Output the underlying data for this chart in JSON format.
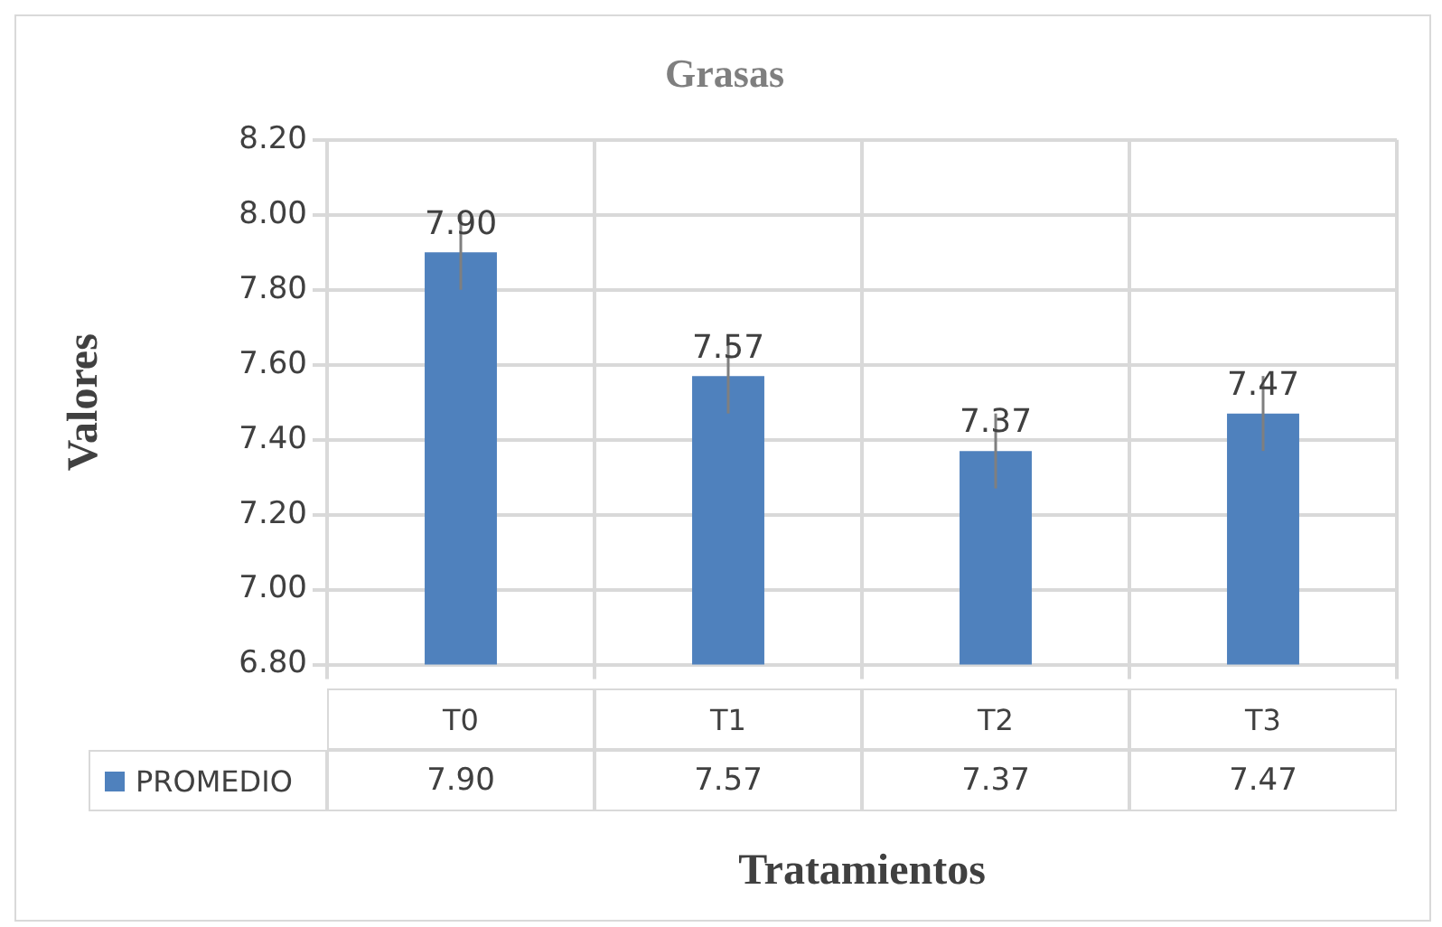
{
  "chart_data": {
    "type": "bar",
    "title": "Grasas",
    "xlabel": "Tratamientos",
    "ylabel": "Valores",
    "categories": [
      "T0",
      "T1",
      "T2",
      "T3"
    ],
    "series": [
      {
        "name": "PROMEDIO",
        "color": "#4f81bd",
        "values": [
          7.9,
          7.57,
          7.37,
          7.47
        ],
        "value_labels": [
          "7.90",
          "7.57",
          "7.37",
          "7.47"
        ],
        "errors": [
          0.1,
          0.1,
          0.1,
          0.1
        ]
      }
    ],
    "ylim": [
      6.8,
      8.2
    ],
    "yticks": [
      {
        "value": 6.8,
        "label": "6.80"
      },
      {
        "value": 7.0,
        "label": "7.00"
      },
      {
        "value": 7.2,
        "label": "7.20"
      },
      {
        "value": 7.4,
        "label": "7.40"
      },
      {
        "value": 7.6,
        "label": "7.60"
      },
      {
        "value": 7.8,
        "label": "7.80"
      },
      {
        "value": 8.0,
        "label": "8.00"
      },
      {
        "value": 8.2,
        "label": "8.20"
      }
    ],
    "grid": true,
    "legend": "bottom"
  }
}
